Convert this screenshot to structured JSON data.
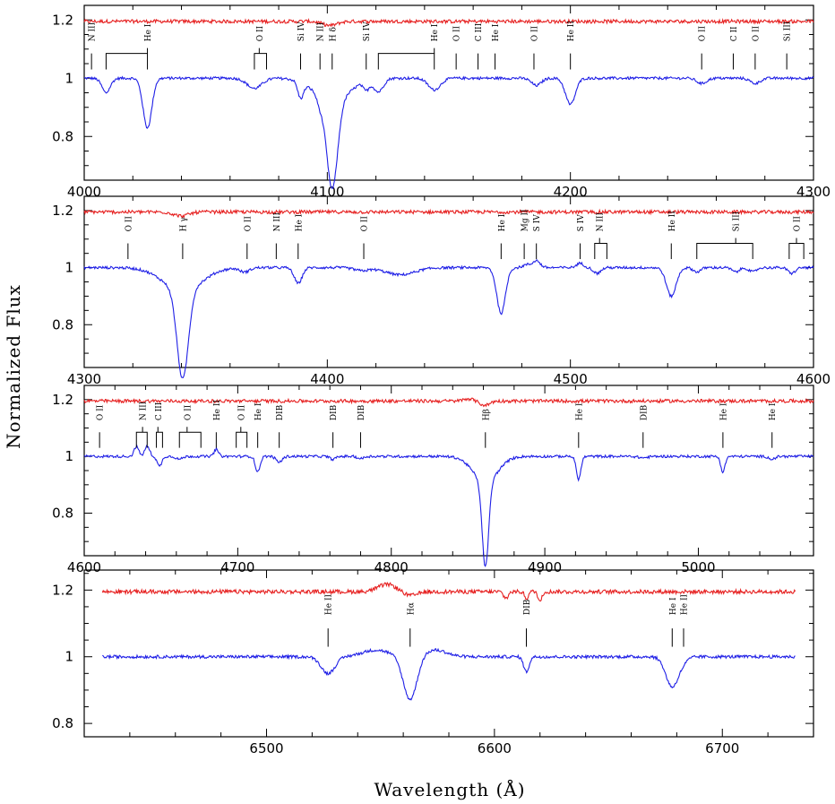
{
  "chart_data": {
    "type": "line",
    "xlabel": "Wavelength (Å)",
    "ylabel": "Normalized Flux",
    "series_colors": {
      "spectrum": "#1f1fe6",
      "offset_spectrum": "#e61f1f"
    },
    "panels": [
      {
        "xlim": [
          4000,
          4300
        ],
        "ylim": [
          0.65,
          1.25
        ],
        "xticks": [
          {
            "v": 4000,
            "l": "4000"
          },
          {
            "v": 4100,
            "l": "4100"
          },
          {
            "v": 4200,
            "l": "4200"
          },
          {
            "v": 4300,
            "l": "4300"
          }
        ],
        "yticks": [
          {
            "v": 0.8,
            "l": "0.8"
          },
          {
            "v": 1.0,
            "l": "1"
          },
          {
            "v": 1.2,
            "l": "1.2"
          }
        ],
        "red_level": 1.195,
        "red_wiggle": [
          {
            "c": 4101,
            "d": 0.014,
            "w": 3
          }
        ],
        "blue": [
          {
            "c": 4026,
            "d": 0.17,
            "w": 1.8
          },
          {
            "c": 4009,
            "d": 0.02,
            "w": 2
          },
          {
            "c": 4009,
            "d": 0.03,
            "w": 1.5
          },
          {
            "c": 4070,
            "d": 0.035,
            "w": 3
          },
          {
            "c": 4089,
            "d": 0.055,
            "w": 1.2
          },
          {
            "c": 4097,
            "d": 0.03,
            "w": 1.3
          },
          {
            "c": 4102,
            "d": 0.3,
            "w": 2.2
          },
          {
            "c": 4102,
            "d": 0.08,
            "w": 7
          },
          {
            "c": 4116,
            "d": 0.03,
            "w": 1.2
          },
          {
            "c": 4121,
            "d": 0.045,
            "w": 2
          },
          {
            "c": 4144,
            "d": 0.04,
            "w": 2.5
          },
          {
            "c": 4186,
            "d": 0.025,
            "w": 2
          },
          {
            "c": 4200,
            "d": 0.09,
            "w": 2
          },
          {
            "c": 4254,
            "d": 0.018,
            "w": 2
          },
          {
            "c": 4276,
            "d": 0.018,
            "w": 2
          }
        ],
        "lines": [
          {
            "x": 4003,
            "t": "N III"
          },
          {
            "x": 4026,
            "t": "He I",
            "b": [
              4009,
              4026
            ]
          },
          {
            "x": 4072,
            "t": "O II",
            "b": [
              4070,
              4075
            ]
          },
          {
            "x": 4089,
            "t": "Si IV"
          },
          {
            "x": 4097,
            "t": "N III"
          },
          {
            "x": 4102,
            "t": "H δ"
          },
          {
            "x": 4116,
            "t": "Si IV"
          },
          {
            "x": 4144,
            "t": "He I",
            "b": [
              4121,
              4144
            ]
          },
          {
            "x": 4153,
            "t": "O II"
          },
          {
            "x": 4162,
            "t": "C III"
          },
          {
            "x": 4169,
            "t": "He I"
          },
          {
            "x": 4185,
            "t": "O II"
          },
          {
            "x": 4200,
            "t": "He II"
          },
          {
            "x": 4254,
            "t": "O II"
          },
          {
            "x": 4267,
            "t": "C II"
          },
          {
            "x": 4276,
            "t": "O II"
          },
          {
            "x": 4289,
            "t": "Si III"
          }
        ]
      },
      {
        "xlim": [
          4300,
          4600
        ],
        "ylim": [
          0.65,
          1.25
        ],
        "xticks": [
          {
            "v": 4300,
            "l": "4300"
          },
          {
            "v": 4400,
            "l": "4400"
          },
          {
            "v": 4500,
            "l": "4500"
          },
          {
            "v": 4600,
            "l": "4600"
          }
        ],
        "yticks": [
          {
            "v": 0.8,
            "l": "0.8"
          },
          {
            "v": 1.0,
            "l": "1"
          },
          {
            "v": 1.2,
            "l": "1.2"
          }
        ],
        "red_level": 1.195,
        "red_wiggle": [
          {
            "c": 4340,
            "d": 0.014,
            "w": 3
          }
        ],
        "blue": [
          {
            "c": 4340.5,
            "d": 0.31,
            "w": 2.3
          },
          {
            "c": 4340.5,
            "d": 0.08,
            "w": 8
          },
          {
            "c": 4366,
            "d": 0.015,
            "w": 2
          },
          {
            "c": 4388,
            "d": 0.055,
            "w": 1.6
          },
          {
            "c": 4414,
            "d": 0.01,
            "w": 3
          },
          {
            "c": 4430,
            "d": 0.025,
            "w": 6
          },
          {
            "c": 4471.5,
            "d": 0.16,
            "w": 1.8
          },
          {
            "c": 4482,
            "d": -0.01,
            "w": 1.5
          },
          {
            "c": 4486,
            "d": -0.025,
            "w": 1.5
          },
          {
            "c": 4504,
            "d": -0.015,
            "w": 1.5
          },
          {
            "c": 4511,
            "d": 0.02,
            "w": 1.5
          },
          {
            "c": 4541.5,
            "d": 0.1,
            "w": 2
          },
          {
            "c": 4552,
            "d": 0.015,
            "w": 1.5
          },
          {
            "c": 4568,
            "d": 0.015,
            "w": 1.5
          },
          {
            "c": 4575,
            "d": 0.015,
            "w": 1.5
          },
          {
            "c": 4591,
            "d": 0.02,
            "w": 1.5
          }
        ],
        "lines": [
          {
            "x": 4318,
            "t": "O II"
          },
          {
            "x": 4340.5,
            "t": "H γ"
          },
          {
            "x": 4367,
            "t": "O II"
          },
          {
            "x": 4379,
            "t": "N III"
          },
          {
            "x": 4388,
            "t": "He I"
          },
          {
            "x": 4415,
            "t": "O II"
          },
          {
            "x": 4471.5,
            "t": "He I"
          },
          {
            "x": 4481,
            "t": "Mg II"
          },
          {
            "x": 4486,
            "t": "S IV"
          },
          {
            "x": 4504,
            "t": "S IV"
          },
          {
            "x": 4512,
            "t": "N III",
            "b": [
              4510,
              4515
            ]
          },
          {
            "x": 4541.5,
            "t": "He II"
          },
          {
            "x": 4568,
            "t": "Si III",
            "b": [
              4552,
              4575
            ]
          },
          {
            "x": 4593,
            "t": "O II",
            "b": [
              4590,
              4596
            ]
          }
        ]
      },
      {
        "xlim": [
          4600,
          5075
        ],
        "ylim": [
          0.65,
          1.25
        ],
        "xticks": [
          {
            "v": 4600,
            "l": "4600"
          },
          {
            "v": 4700,
            "l": "4700"
          },
          {
            "v": 4800,
            "l": "4800"
          },
          {
            "v": 4900,
            "l": "4900"
          },
          {
            "v": 5000,
            "l": "5000"
          }
        ],
        "yticks": [
          {
            "v": 0.8,
            "l": "0.8"
          },
          {
            "v": 1.0,
            "l": "1"
          },
          {
            "v": 1.2,
            "l": "1.2"
          }
        ],
        "red_level": 1.195,
        "red_wiggle": [
          {
            "c": 4861,
            "d": 0.015,
            "w": 3
          },
          {
            "c": 4850,
            "d": -0.008,
            "w": 3
          }
        ],
        "blue": [
          {
            "c": 4634,
            "d": -0.035,
            "w": 1.5
          },
          {
            "c": 4641,
            "d": -0.035,
            "w": 1.6
          },
          {
            "c": 4649,
            "d": 0.035,
            "w": 1.5
          },
          {
            "c": 4662,
            "d": 0.01,
            "w": 2
          },
          {
            "c": 4686,
            "d": -0.025,
            "w": 1.4
          },
          {
            "c": 4713,
            "d": 0.055,
            "w": 1.5
          },
          {
            "c": 4727,
            "d": 0.02,
            "w": 2
          },
          {
            "c": 4762,
            "d": 0.01,
            "w": 2
          },
          {
            "c": 4780,
            "d": 0.008,
            "w": 2
          },
          {
            "c": 4861.3,
            "d": 0.3,
            "w": 2.1
          },
          {
            "c": 4861.3,
            "d": 0.09,
            "w": 8
          },
          {
            "c": 4922,
            "d": 0.08,
            "w": 1.5
          },
          {
            "c": 4964,
            "d": 0.005,
            "w": 3
          },
          {
            "c": 5016,
            "d": 0.055,
            "w": 1.4
          },
          {
            "c": 5048,
            "d": 0.01,
            "w": 2
          }
        ],
        "lines": [
          {
            "x": 4610,
            "t": "O II"
          },
          {
            "x": 4638,
            "t": "N III",
            "b": [
              4634,
              4641
            ]
          },
          {
            "x": 4648,
            "t": "C III",
            "b": [
              4647,
              4651
            ]
          },
          {
            "x": 4667,
            "t": "O II",
            "b": [
              4662,
              4676
            ]
          },
          {
            "x": 4686,
            "t": "He II"
          },
          {
            "x": 4702,
            "t": "O II",
            "b": [
              4699,
              4706
            ]
          },
          {
            "x": 4713,
            "t": "He I"
          },
          {
            "x": 4727,
            "t": "DIB"
          },
          {
            "x": 4762,
            "t": "DIB"
          },
          {
            "x": 4780,
            "t": "DIB"
          },
          {
            "x": 4861.3,
            "t": "Hβ"
          },
          {
            "x": 4922,
            "t": "He I"
          },
          {
            "x": 4964,
            "t": "DIB"
          },
          {
            "x": 5016,
            "t": "He I"
          },
          {
            "x": 5048,
            "t": "He I"
          }
        ]
      },
      {
        "xlim": [
          6420,
          6740
        ],
        "ylim": [
          0.76,
          1.26
        ],
        "xticks": [
          {
            "v": 6500,
            "l": "6500"
          },
          {
            "v": 6600,
            "l": "6600"
          },
          {
            "v": 6700,
            "l": "6700"
          }
        ],
        "yticks": [
          {
            "v": 0.8,
            "l": "0.8"
          },
          {
            "v": 1.0,
            "l": "1"
          },
          {
            "v": 1.2,
            "l": "1.2"
          }
        ],
        "xdata": [
          6428,
          6732
        ],
        "red_level": 1.195,
        "red_wiggle": [
          {
            "c": 6553,
            "d": -0.022,
            "w": 4
          },
          {
            "c": 6563,
            "d": 0.012,
            "w": 3
          },
          {
            "c": 6605,
            "d": 0.02,
            "w": 1
          },
          {
            "c": 6614,
            "d": 0.02,
            "w": 0.8
          },
          {
            "c": 6620,
            "d": 0.03,
            "w": 0.8
          }
        ],
        "blue": [
          {
            "c": 6527,
            "d": 0.05,
            "w": 3
          },
          {
            "c": 6563,
            "d": 0.13,
            "w": 3
          },
          {
            "c": 6548,
            "d": -0.02,
            "w": 6
          },
          {
            "c": 6574,
            "d": -0.02,
            "w": 5
          },
          {
            "c": 6614,
            "d": 0.045,
            "w": 1.2
          },
          {
            "c": 6678,
            "d": 0.09,
            "w": 2.8
          },
          {
            "c": 6683,
            "d": 0.01,
            "w": 2
          }
        ],
        "lines": [
          {
            "x": 6527,
            "t": "He II"
          },
          {
            "x": 6563,
            "t": "Hα"
          },
          {
            "x": 6614,
            "t": "DIB"
          },
          {
            "x": 6678,
            "t": "He I"
          },
          {
            "x": 6683,
            "t": "He II"
          }
        ]
      }
    ]
  }
}
